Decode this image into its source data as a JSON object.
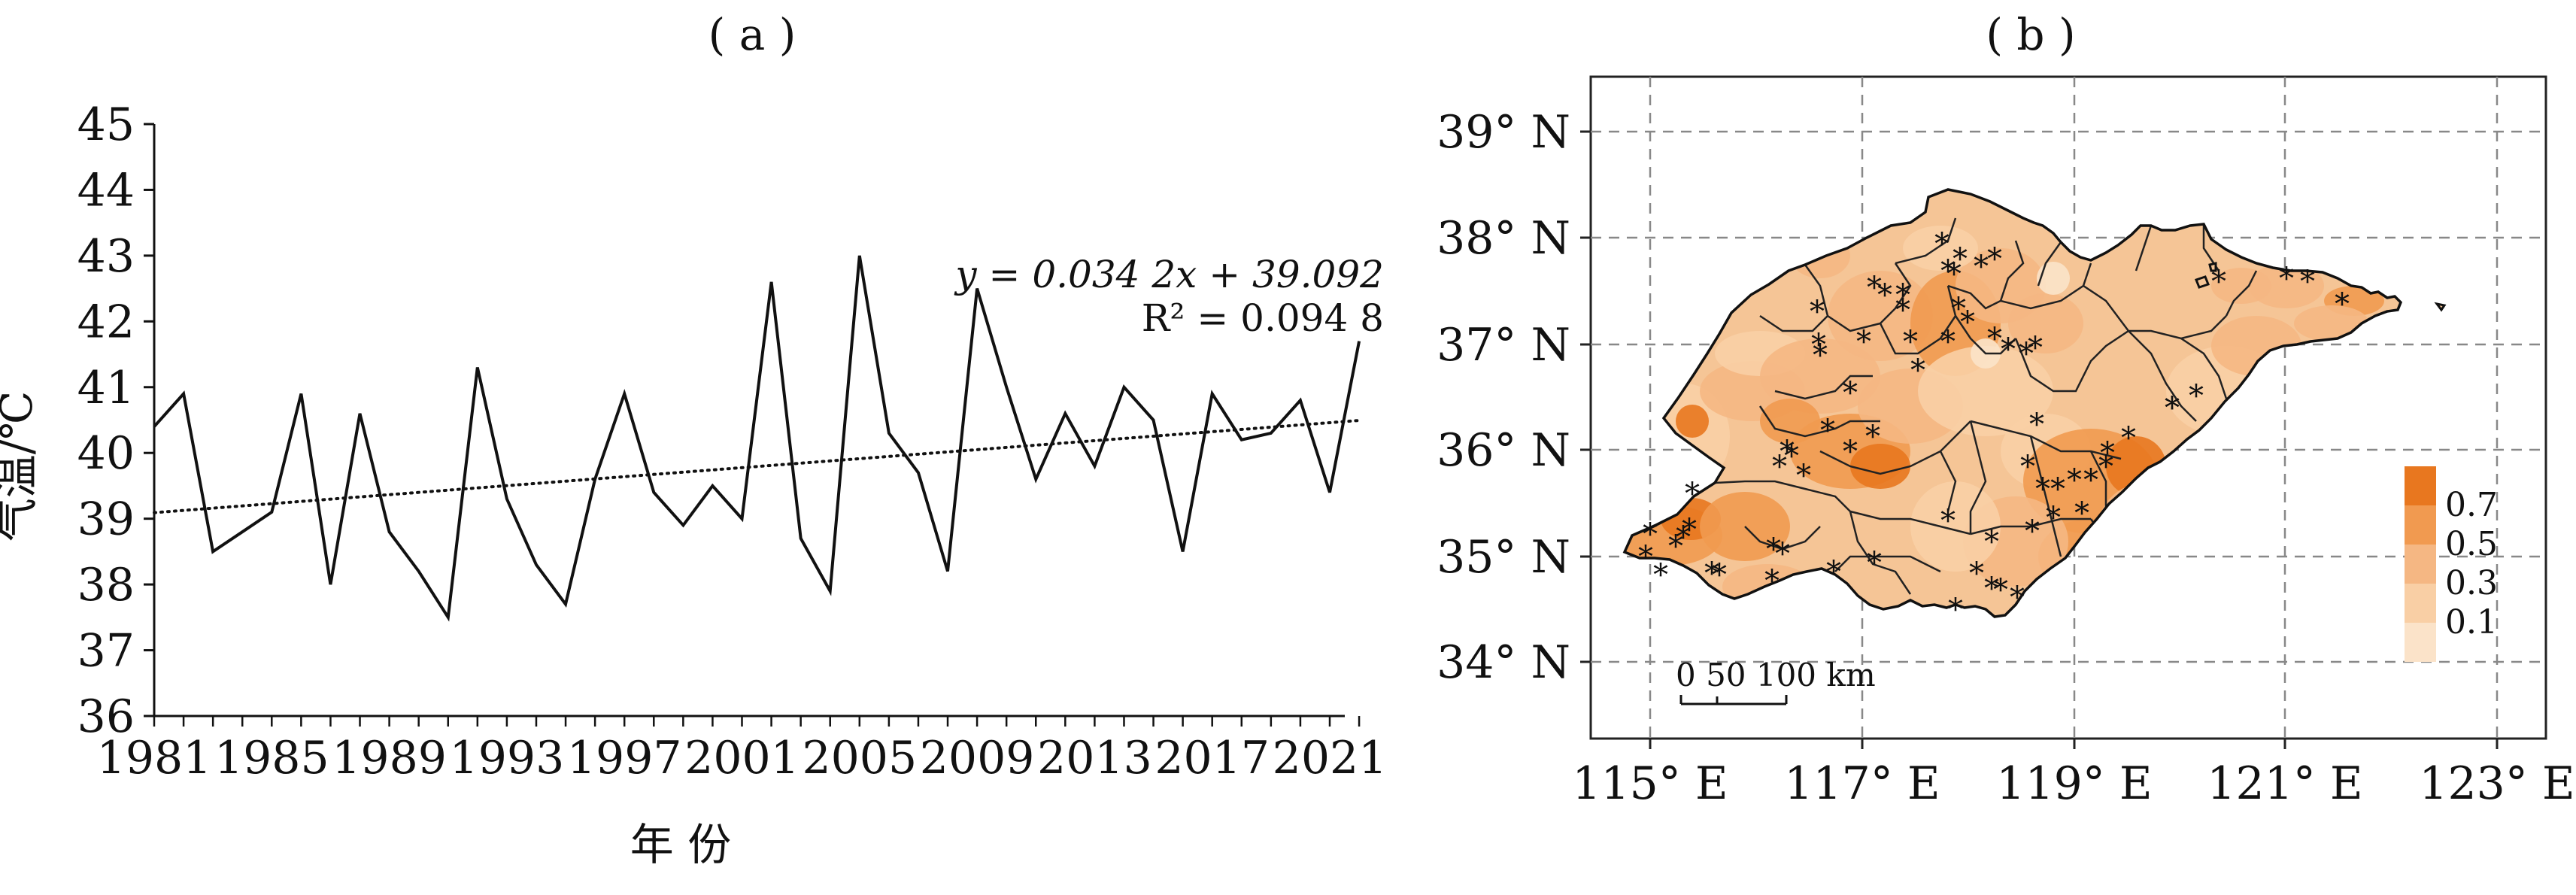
{
  "chart_data": [
    {
      "type": "line",
      "panel_label": "( a )",
      "xlabel": "年 份",
      "ylabel": "气温/℃",
      "xlim": [
        1981,
        2021
      ],
      "ylim": [
        36,
        45
      ],
      "x_ticks": [
        "1981",
        "1985",
        "1989",
        "1993",
        "1997",
        "2001",
        "2005",
        "2009",
        "2013",
        "2017",
        "2021"
      ],
      "y_ticks": [
        "36",
        "37",
        "38",
        "39",
        "40",
        "41",
        "42",
        "43",
        "44",
        "45"
      ],
      "series": [
        {
          "style": "solid",
          "x": [
            1981,
            1982,
            1983,
            1984,
            1985,
            1986,
            1987,
            1988,
            1989,
            1990,
            1991,
            1992,
            1993,
            1994,
            1995,
            1996,
            1997,
            1998,
            1999,
            2000,
            2001,
            2002,
            2003,
            2004,
            2005,
            2006,
            2007,
            2008,
            2009,
            2010,
            2011,
            2012,
            2013,
            2014,
            2015,
            2016,
            2017,
            2018,
            2019,
            2020,
            2021,
            2022
          ],
          "values": [
            40.4,
            40.9,
            38.5,
            38.8,
            39.1,
            40.9,
            38.0,
            40.6,
            38.8,
            38.2,
            37.5,
            41.3,
            39.3,
            38.3,
            37.7,
            39.6,
            40.9,
            39.4,
            38.9,
            39.5,
            39.0,
            42.6,
            38.7,
            37.9,
            43.0,
            40.3,
            39.7,
            38.2,
            42.5,
            41.0,
            39.6,
            40.6,
            39.8,
            41.0,
            40.5,
            38.5,
            40.9,
            40.2,
            40.3,
            40.8,
            39.4,
            41.7
          ]
        },
        {
          "style": "dotted",
          "trend": {
            "slope": 0.0342,
            "intercept": 39.092,
            "x0": 1981
          }
        }
      ],
      "annotations": {
        "equation_y": "y = 0.034 2x + 39.092",
        "equation_r2": "R² = 0.094 8"
      }
    },
    {
      "type": "heatmap",
      "panel_label": "( b )",
      "x_ticks": [
        "115° E",
        "117° E",
        "119° E",
        "121° E",
        "123° E"
      ],
      "y_ticks": [
        "39° N",
        "38° N",
        "37° N",
        "36° N",
        "35° N",
        "34° N"
      ],
      "xlim": [
        114.5,
        123
      ],
      "ylim": [
        33.3,
        39.4
      ],
      "grid": true,
      "legend": {
        "placement": "right",
        "items": [
          {
            "label": "0.7",
            "color": "#e8771f"
          },
          {
            "label": "0.5",
            "color": "#f19a50"
          },
          {
            "label": "0.3",
            "color": "#f5b783"
          },
          {
            "label": "0.1",
            "color": "#f9cfa5"
          },
          {
            "label": "",
            "color": "#fbe3c9"
          }
        ]
      },
      "scale_bar": {
        "label": "0  50 100 km"
      },
      "marker_symbol": "*"
    }
  ]
}
